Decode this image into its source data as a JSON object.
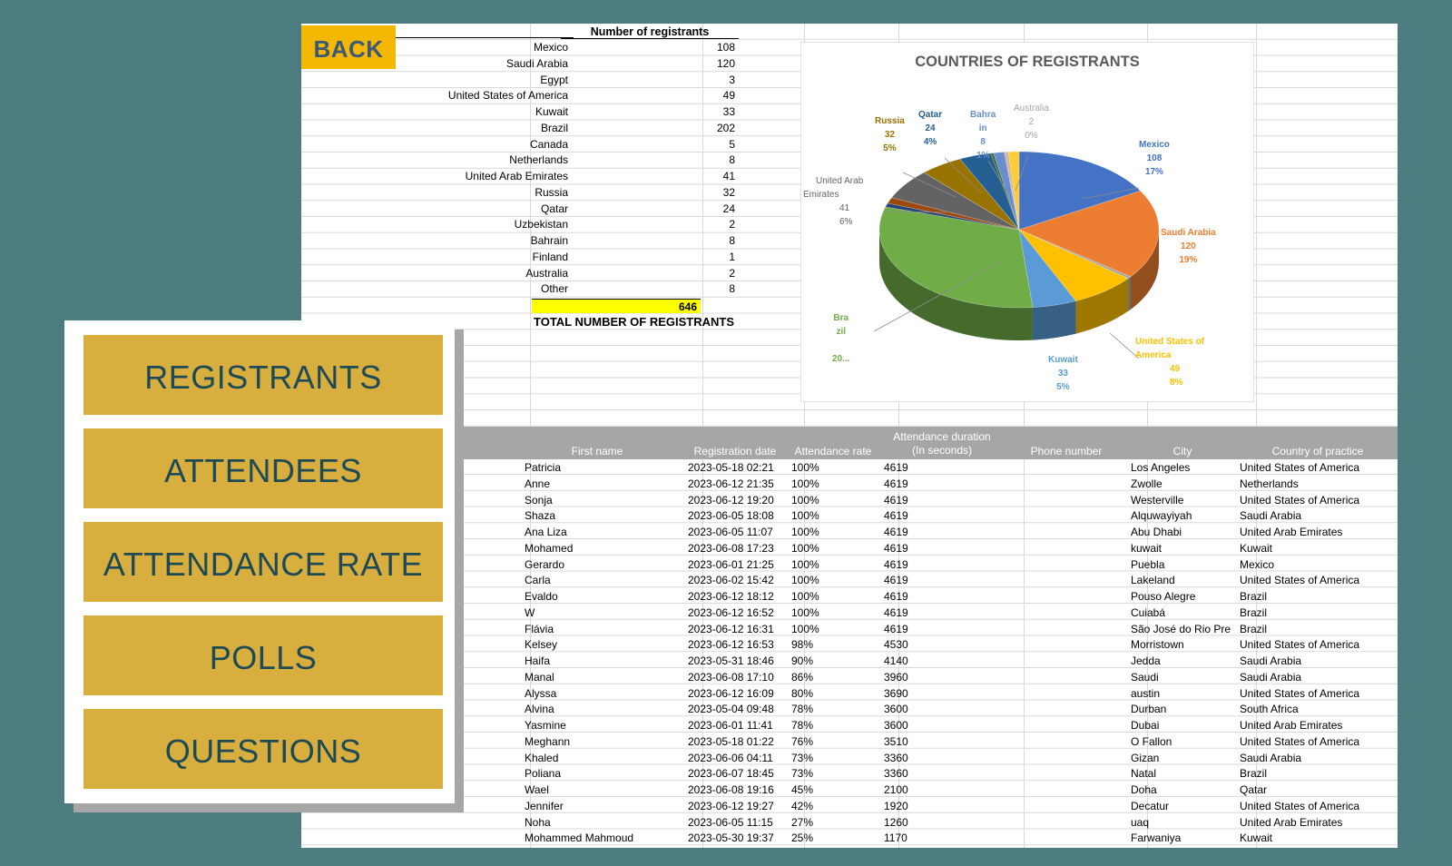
{
  "back_label": "BACK",
  "summary": {
    "header": "Number of registrants",
    "rows": [
      {
        "country": "Mexico",
        "count": "108"
      },
      {
        "country": "Saudi Arabia",
        "count": "120"
      },
      {
        "country": "Egypt",
        "count": "3"
      },
      {
        "country": "United States of America",
        "count": "49"
      },
      {
        "country": "Kuwait",
        "count": "33"
      },
      {
        "country": "Brazil",
        "count": "202"
      },
      {
        "country": "Canada",
        "count": "5"
      },
      {
        "country": "Netherlands",
        "count": "8"
      },
      {
        "country": "United Arab Emirates",
        "count": "41"
      },
      {
        "country": "Russia",
        "count": "32"
      },
      {
        "country": "Qatar",
        "count": "24"
      },
      {
        "country": "Uzbekistan",
        "count": "2"
      },
      {
        "country": "Bahrain",
        "count": "8"
      },
      {
        "country": "Finland",
        "count": "1"
      },
      {
        "country": "Australia",
        "count": "2"
      },
      {
        "country": "Other",
        "count": "8"
      }
    ],
    "total_value": "646",
    "total_label": "TOTAL NUMBER OF REGISTRANTS"
  },
  "chart_data": {
    "type": "pie",
    "title": "COUNTRIES OF REGISTRANTS",
    "slices": [
      {
        "label": "Mexico",
        "value": 108,
        "percent": "17%",
        "color": "#4472c4"
      },
      {
        "label": "Saudi Arabia",
        "value": 120,
        "percent": "19%",
        "color": "#ed7d31"
      },
      {
        "label": "Egypt",
        "value": 3,
        "percent": "",
        "color": "#a5a5a5"
      },
      {
        "label": "United States of America",
        "value": 49,
        "percent": "8%",
        "color": "#ffc000"
      },
      {
        "label": "Kuwait",
        "value": 33,
        "percent": "5%",
        "color": "#5b9bd5"
      },
      {
        "label": "Brazil",
        "value": 202,
        "percent": "",
        "color": "#70ad47"
      },
      {
        "label": "Canada",
        "value": 5,
        "percent": "",
        "color": "#264478"
      },
      {
        "label": "Netherlands",
        "value": 8,
        "percent": "",
        "color": "#9e480e"
      },
      {
        "label": "United Arab Emirates",
        "value": 41,
        "percent": "6%",
        "color": "#636363"
      },
      {
        "label": "Russia",
        "value": 32,
        "percent": "5%",
        "color": "#997300"
      },
      {
        "label": "Qatar",
        "value": 24,
        "percent": "4%",
        "color": "#255e91"
      },
      {
        "label": "Uzbekistan",
        "value": 2,
        "percent": "",
        "color": "#43682b"
      },
      {
        "label": "Bahrain",
        "value": 8,
        "percent": "1%",
        "color": "#698ed0"
      },
      {
        "label": "Finland",
        "value": 1,
        "percent": "",
        "color": "#f1975a"
      },
      {
        "label": "Australia",
        "value": 2,
        "percent": "0%",
        "color": "#b7b7b7"
      },
      {
        "label": "Other",
        "value": 8,
        "percent": "",
        "color": "#ffcd33"
      }
    ],
    "labels": {
      "mexico": [
        "Mexico",
        "108",
        "17%"
      ],
      "saudi": [
        "Saudi Arabia",
        "120",
        "19%"
      ],
      "usa": [
        "United States of",
        "America",
        "49",
        "8%"
      ],
      "kuwait": [
        "Kuwait",
        "33",
        "5%"
      ],
      "brazil": [
        "Bra",
        "zil",
        "20..."
      ],
      "uae": [
        "United Arab",
        "Emirates",
        "41",
        "6%"
      ],
      "russia": [
        "Russia",
        "32",
        "5%"
      ],
      "qatar": [
        "Qatar",
        "24",
        "4%"
      ],
      "bahrain": [
        "Bahra",
        "in",
        "8",
        "1%"
      ],
      "australia": [
        "Australia",
        "2",
        "0%"
      ]
    }
  },
  "table": {
    "headers": {
      "first_name": "First name",
      "reg_date": "Registration date",
      "att_rate": "Attendance rate",
      "att_dur_1": "Attendance duration",
      "att_dur_2": "(In seconds)",
      "phone": "Phone number",
      "city": "City",
      "country": "Country of practice"
    },
    "rows": [
      [
        "Patricia",
        "2023-05-18 02:21",
        "100%",
        "4619",
        "",
        "Los Angeles",
        "United States of America"
      ],
      [
        "Anne",
        "2023-06-12 21:35",
        "100%",
        "4619",
        "",
        "Zwolle",
        "Netherlands"
      ],
      [
        "Sonja",
        "2023-06-12 19:20",
        "100%",
        "4619",
        "",
        "Westerville",
        "United States of America"
      ],
      [
        "Shaza",
        "2023-06-05 18:08",
        "100%",
        "4619",
        "",
        "Alquwayiyah",
        "Saudi Arabia"
      ],
      [
        "Ana Liza",
        "2023-06-05 11:07",
        "100%",
        "4619",
        "",
        "Abu Dhabi",
        "United Arab Emirates"
      ],
      [
        "Mohamed",
        "2023-06-08 17:23",
        "100%",
        "4619",
        "",
        "kuwait",
        "Kuwait"
      ],
      [
        "Gerardo",
        "2023-06-01 21:25",
        "100%",
        "4619",
        "",
        "Puebla",
        "Mexico"
      ],
      [
        "Carla",
        "2023-06-02 15:42",
        "100%",
        "4619",
        "",
        "Lakeland",
        "United States of America"
      ],
      [
        "Evaldo",
        "2023-06-12 18:12",
        "100%",
        "4619",
        "",
        "Pouso Alegre",
        "Brazil"
      ],
      [
        "W",
        "2023-06-12 16:52",
        "100%",
        "4619",
        "",
        "Cuiabá",
        "Brazil"
      ],
      [
        "Flávia",
        "2023-06-12 16:31",
        "100%",
        "4619",
        "",
        "São José do Rio Pre",
        "Brazil"
      ],
      [
        "Kelsey",
        "2023-06-12 16:53",
        "98%",
        "4530",
        "",
        "Morristown",
        "United States of America"
      ],
      [
        "Haifa",
        "2023-05-31 18:46",
        "90%",
        "4140",
        "",
        "Jedda",
        "Saudi Arabia"
      ],
      [
        "Manal",
        "2023-06-08 17:10",
        "86%",
        "3960",
        "",
        "Saudi",
        "Saudi Arabia"
      ],
      [
        "Alyssa",
        "2023-06-12 16:09",
        "80%",
        "3690",
        "",
        "austin",
        "United States of America"
      ],
      [
        "Alvina",
        "2023-05-04 09:48",
        "78%",
        "3600",
        "",
        "Durban",
        "South Africa"
      ],
      [
        "Yasmine",
        "2023-06-01 11:41",
        "78%",
        "3600",
        "",
        "Dubai",
        "United Arab Emirates"
      ],
      [
        "Meghann",
        "2023-05-18 01:22",
        "76%",
        "3510",
        "",
        "O Fallon",
        "United States of America"
      ],
      [
        "Khaled",
        "2023-06-06 04:11",
        "73%",
        "3360",
        "",
        "Gizan",
        "Saudi Arabia"
      ],
      [
        "Poliana",
        "2023-06-07 18:45",
        "73%",
        "3360",
        "",
        "Natal",
        "Brazil"
      ],
      [
        "Wael",
        "2023-06-08 19:16",
        "45%",
        "2100",
        "",
        "Doha",
        "Qatar"
      ],
      [
        "Jennifer",
        "2023-06-12 19:27",
        "42%",
        "1920",
        "",
        "Decatur",
        "United States of America"
      ],
      [
        "Noha",
        "2023-06-05 11:15",
        "27%",
        "1260",
        "",
        "uaq",
        "United Arab Emirates"
      ],
      [
        "Mohammed Mahmoud",
        "2023-05-30 19:37",
        "25%",
        "1170",
        "",
        "Farwaniya",
        "Kuwait"
      ]
    ]
  },
  "menu": {
    "registrants": "REGISTRANTS",
    "attendees": "ATTENDEES",
    "attendance_rate": "ATTENDANCE RATE",
    "polls": "POLLS",
    "questions": "QUESTIONS"
  }
}
